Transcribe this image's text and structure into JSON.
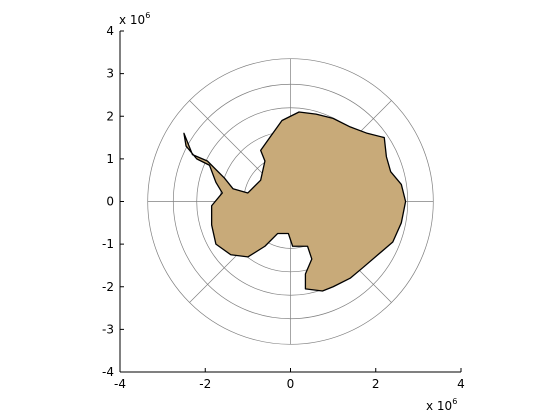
{
  "map": {
    "projection": "south-polar-stereographic",
    "land_color": "#c8aa79",
    "coast_color": "#000000",
    "grid_color": "#808080",
    "graticule": {
      "circle_radii": [
        550000.0,
        1100000.0,
        1650000.0,
        2200000.0,
        2750000.0,
        3350000.0
      ],
      "meridian_angles_deg": [
        0,
        45,
        90,
        135,
        180,
        225,
        270,
        315
      ]
    }
  },
  "axes": {
    "xlim": [
      -4,
      4
    ],
    "ylim": [
      -4,
      4
    ],
    "x_ticks": [
      "-4",
      "-2",
      "0",
      "2",
      "4"
    ],
    "x_tick_values": [
      -4,
      -2,
      0,
      2,
      4
    ],
    "y_ticks": [
      "4",
      "3",
      "2",
      "1",
      "0",
      "-1",
      "-2",
      "-3",
      "-4"
    ],
    "y_tick_values": [
      4,
      3,
      2,
      1,
      0,
      -1,
      -2,
      -3,
      -4
    ],
    "x_multiplier": {
      "base": "x 10",
      "exp": "6"
    },
    "y_multiplier": {
      "base": "x 10",
      "exp": "6"
    }
  },
  "antarctica_outline": [
    [
      -0.45,
      1.55
    ],
    [
      -0.2,
      1.9
    ],
    [
      0.2,
      2.1
    ],
    [
      0.6,
      2.05
    ],
    [
      1.0,
      1.95
    ],
    [
      1.4,
      1.75
    ],
    [
      1.8,
      1.6
    ],
    [
      2.2,
      1.5
    ],
    [
      2.25,
      1.05
    ],
    [
      2.35,
      0.7
    ],
    [
      2.6,
      0.4
    ],
    [
      2.7,
      0.0
    ],
    [
      2.6,
      -0.5
    ],
    [
      2.4,
      -0.95
    ],
    [
      2.05,
      -1.25
    ],
    [
      1.7,
      -1.55
    ],
    [
      1.4,
      -1.8
    ],
    [
      1.0,
      -2.0
    ],
    [
      0.75,
      -2.1
    ],
    [
      0.35,
      -2.05
    ],
    [
      0.35,
      -1.7
    ],
    [
      0.5,
      -1.35
    ],
    [
      0.4,
      -1.05
    ],
    [
      0.05,
      -1.05
    ],
    [
      -0.05,
      -0.75
    ],
    [
      -0.3,
      -0.75
    ],
    [
      -0.6,
      -1.05
    ],
    [
      -1.0,
      -1.3
    ],
    [
      -1.4,
      -1.25
    ],
    [
      -1.75,
      -1.0
    ],
    [
      -1.85,
      -0.55
    ],
    [
      -1.85,
      -0.1
    ],
    [
      -1.6,
      0.2
    ],
    [
      -1.75,
      0.45
    ],
    [
      -1.9,
      0.85
    ],
    [
      -2.2,
      1.0
    ],
    [
      -2.45,
      1.3
    ],
    [
      -2.5,
      1.6
    ],
    [
      -2.3,
      1.1
    ],
    [
      -1.95,
      0.95
    ],
    [
      -1.55,
      0.55
    ],
    [
      -1.35,
      0.3
    ],
    [
      -1.0,
      0.2
    ],
    [
      -0.7,
      0.5
    ],
    [
      -0.6,
      0.95
    ],
    [
      -0.7,
      1.2
    ]
  ]
}
